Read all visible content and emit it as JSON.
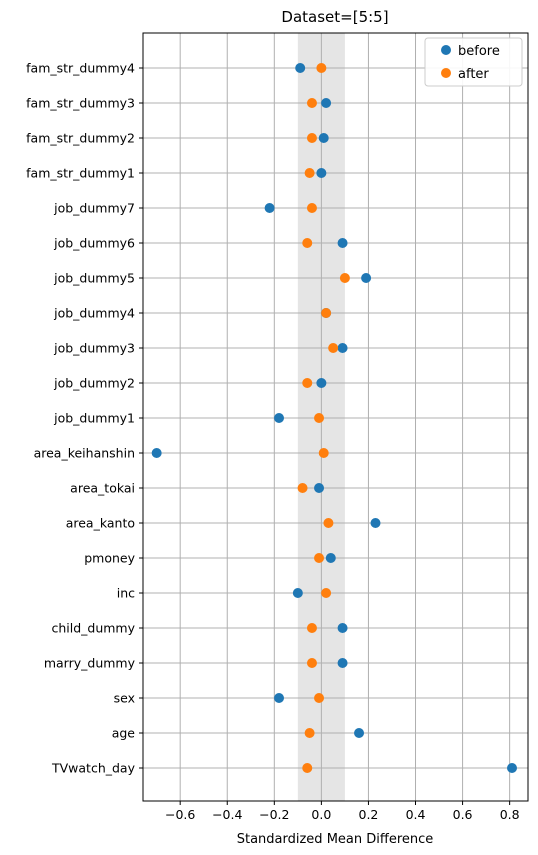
{
  "chart_data": {
    "type": "scatter",
    "title": "Dataset=[5:5]",
    "xlabel": "Standardized Mean Difference",
    "ylabel": "",
    "xlim": [
      -0.758,
      0.878
    ],
    "xticks": [
      -0.6,
      -0.4,
      -0.2,
      0.0,
      0.2,
      0.4,
      0.6,
      0.8
    ],
    "xtick_labels": [
      "−0.6",
      "−0.4",
      "−0.2",
      "0.0",
      "0.2",
      "0.4",
      "0.6",
      "0.8"
    ],
    "grid": true,
    "shaded_band": [
      -0.1,
      0.1
    ],
    "legend_position": "top-right",
    "categories": [
      "TVwatch_day",
      "age",
      "sex",
      "marry_dummy",
      "child_dummy",
      "inc",
      "pmoney",
      "area_kanto",
      "area_tokai",
      "area_keihanshin",
      "job_dummy1",
      "job_dummy2",
      "job_dummy3",
      "job_dummy4",
      "job_dummy5",
      "job_dummy6",
      "job_dummy7",
      "fam_str_dummy1",
      "fam_str_dummy2",
      "fam_str_dummy3",
      "fam_str_dummy4"
    ],
    "series": [
      {
        "name": "before",
        "color": "#1f77b4",
        "values": [
          0.81,
          0.16,
          -0.18,
          0.09,
          0.09,
          -0.1,
          0.04,
          0.23,
          -0.01,
          -0.7,
          -0.18,
          0.0,
          0.09,
          0.02,
          0.19,
          0.09,
          -0.22,
          0.0,
          0.01,
          0.02,
          -0.09
        ]
      },
      {
        "name": "after",
        "color": "#ff7f0e",
        "values": [
          -0.06,
          -0.05,
          -0.01,
          -0.04,
          -0.04,
          0.02,
          -0.01,
          0.03,
          -0.08,
          0.01,
          -0.01,
          -0.06,
          0.05,
          0.02,
          0.1,
          -0.06,
          -0.04,
          -0.05,
          -0.04,
          -0.04,
          0.0
        ]
      }
    ]
  }
}
